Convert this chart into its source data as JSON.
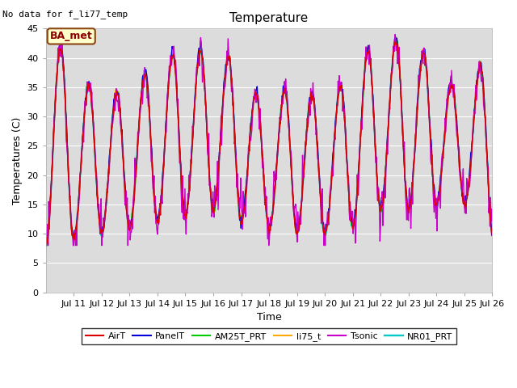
{
  "title": "Temperature",
  "xlabel": "Time",
  "ylabel": "Temperatures (C)",
  "note": "No data for f_li77_temp",
  "ba_met_label": "BA_met",
  "ylim": [
    0,
    45
  ],
  "yticks": [
    0,
    5,
    10,
    15,
    20,
    25,
    30,
    35,
    40,
    45
  ],
  "xlim_start": 10,
  "xlim_end": 26,
  "xtick_labels": [
    "Jul 11",
    "Jul 12",
    "Jul 13",
    "Jul 14",
    "Jul 15",
    "Jul 16",
    "Jul 17",
    "Jul 18",
    "Jul 19",
    "Jul 20",
    "Jul 21",
    "Jul 22",
    "Jul 23",
    "Jul 24",
    "Jul 25",
    "Jul 26"
  ],
  "series": {
    "AirT": {
      "color": "#dd0000",
      "lw": 1.0
    },
    "PanelT": {
      "color": "#0000dd",
      "lw": 1.0
    },
    "AM25T_PRT": {
      "color": "#00cc00",
      "lw": 1.0
    },
    "li75_t": {
      "color": "#ffaa00",
      "lw": 1.0
    },
    "Tsonic": {
      "color": "#cc00cc",
      "lw": 1.0
    },
    "NR01_PRT": {
      "color": "#00cccc",
      "lw": 1.2
    }
  },
  "plot_bg": "#dcdcdc",
  "fig_bg": "#ffffff",
  "grid_color": "#ffffff",
  "figsize": [
    6.4,
    4.8
  ],
  "dpi": 100
}
